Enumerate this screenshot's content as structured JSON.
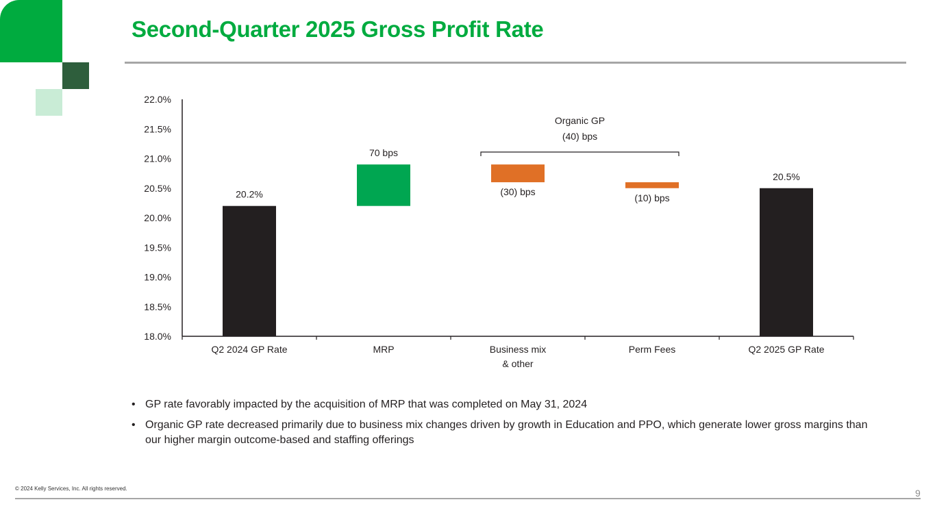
{
  "slide": {
    "title": "Second-Quarter 2025 Gross Profit Rate",
    "bullets": [
      "GP rate favorably impacted by the acquisition of MRP that was completed on May 31, 2024",
      "Organic GP rate decreased primarily due to business mix changes driven by growth in Education and PPO, which generate lower gross margins than our higher margin outcome-based and staffing offerings"
    ],
    "bullet_glyph": "•",
    "footer": "© 2024 Kelly Services, Inc. All rights reserved.",
    "page_number": "9"
  },
  "colors": {
    "brand_green": "#00ab3f",
    "dark_green": "#2e5e3c",
    "light_green": "#c9ecd6",
    "total_bar": "#231f20",
    "increase_bar": "#00a651",
    "decrease_bar": "#e07026"
  },
  "chart_data": {
    "type": "bar",
    "subtype": "waterfall",
    "title": "",
    "xlabel": "",
    "ylabel": "",
    "ylim": [
      18.0,
      22.0
    ],
    "yticks": [
      "18.0%",
      "18.5%",
      "19.0%",
      "19.5%",
      "20.0%",
      "20.5%",
      "21.0%",
      "21.5%",
      "22.0%"
    ],
    "ytick_values": [
      18.0,
      18.5,
      19.0,
      19.5,
      20.0,
      20.5,
      21.0,
      21.5,
      22.0
    ],
    "grid": false,
    "categories": [
      [
        "Q2 2024 GP Rate"
      ],
      [
        "MRP"
      ],
      [
        "Business mix",
        "& other"
      ],
      [
        "Perm Fees"
      ],
      [
        "Q2 2025 GP Rate"
      ]
    ],
    "bars": [
      {
        "kind": "total",
        "start": 18.0,
        "end": 20.2,
        "label": "20.2%",
        "label_pos": "above"
      },
      {
        "kind": "increase",
        "start": 20.2,
        "end": 20.9,
        "label": "70 bps",
        "label_pos": "above"
      },
      {
        "kind": "decrease",
        "start": 20.9,
        "end": 20.6,
        "label": "(30) bps",
        "label_pos": "below"
      },
      {
        "kind": "decrease",
        "start": 20.6,
        "end": 20.5,
        "label": "(10) bps",
        "label_pos": "below"
      },
      {
        "kind": "total",
        "start": 18.0,
        "end": 20.5,
        "label": "20.5%",
        "label_pos": "above"
      }
    ],
    "annotations": [
      {
        "text_lines": [
          "Organic GP",
          "(40) bps"
        ],
        "spans_categories": [
          2,
          3
        ],
        "type": "bracket"
      }
    ]
  }
}
